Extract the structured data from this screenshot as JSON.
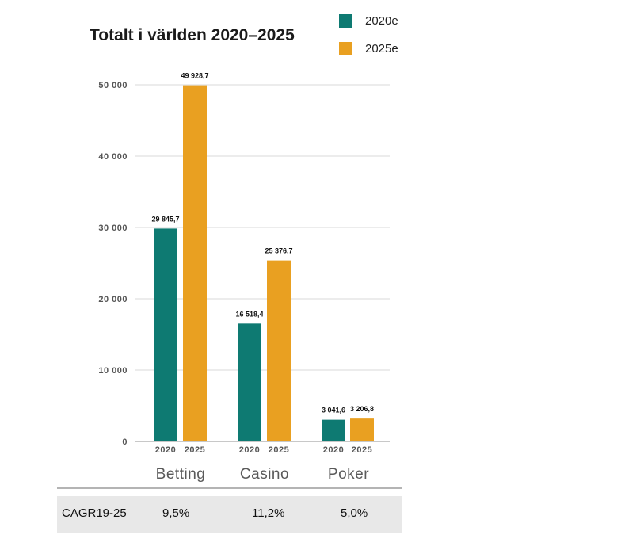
{
  "chart_data": {
    "type": "bar",
    "title": "Totalt i världen 2020–2025",
    "groups": [
      "Betting",
      "Casino",
      "Poker"
    ],
    "subcategories": [
      "2020",
      "2025"
    ],
    "series": [
      {
        "name": "2020e",
        "color": "#0e7a72",
        "values": [
          29845.7,
          16518.4,
          3041.6
        ],
        "labels": [
          "29 845,7",
          "16 518,4",
          "3 041,6"
        ]
      },
      {
        "name": "2025e",
        "color": "#e9a021",
        "values": [
          49928.7,
          25376.7,
          3206.8
        ],
        "labels": [
          "49 928,7",
          "25 376,7",
          "3 206,8"
        ]
      }
    ],
    "ylim": [
      0,
      50000
    ],
    "yticks": [
      {
        "value": 0,
        "label": "0"
      },
      {
        "value": 10000,
        "label": "10 000"
      },
      {
        "value": 20000,
        "label": "20 000"
      },
      {
        "value": 30000,
        "label": "30 000"
      },
      {
        "value": 40000,
        "label": "40 000"
      },
      {
        "value": 50000,
        "label": "50 000"
      }
    ],
    "grid": true,
    "legend_position": "top-right"
  },
  "table": {
    "row_label": "CAGR19-25",
    "values": [
      "9,5%",
      "11,2%",
      "5,0%"
    ]
  }
}
